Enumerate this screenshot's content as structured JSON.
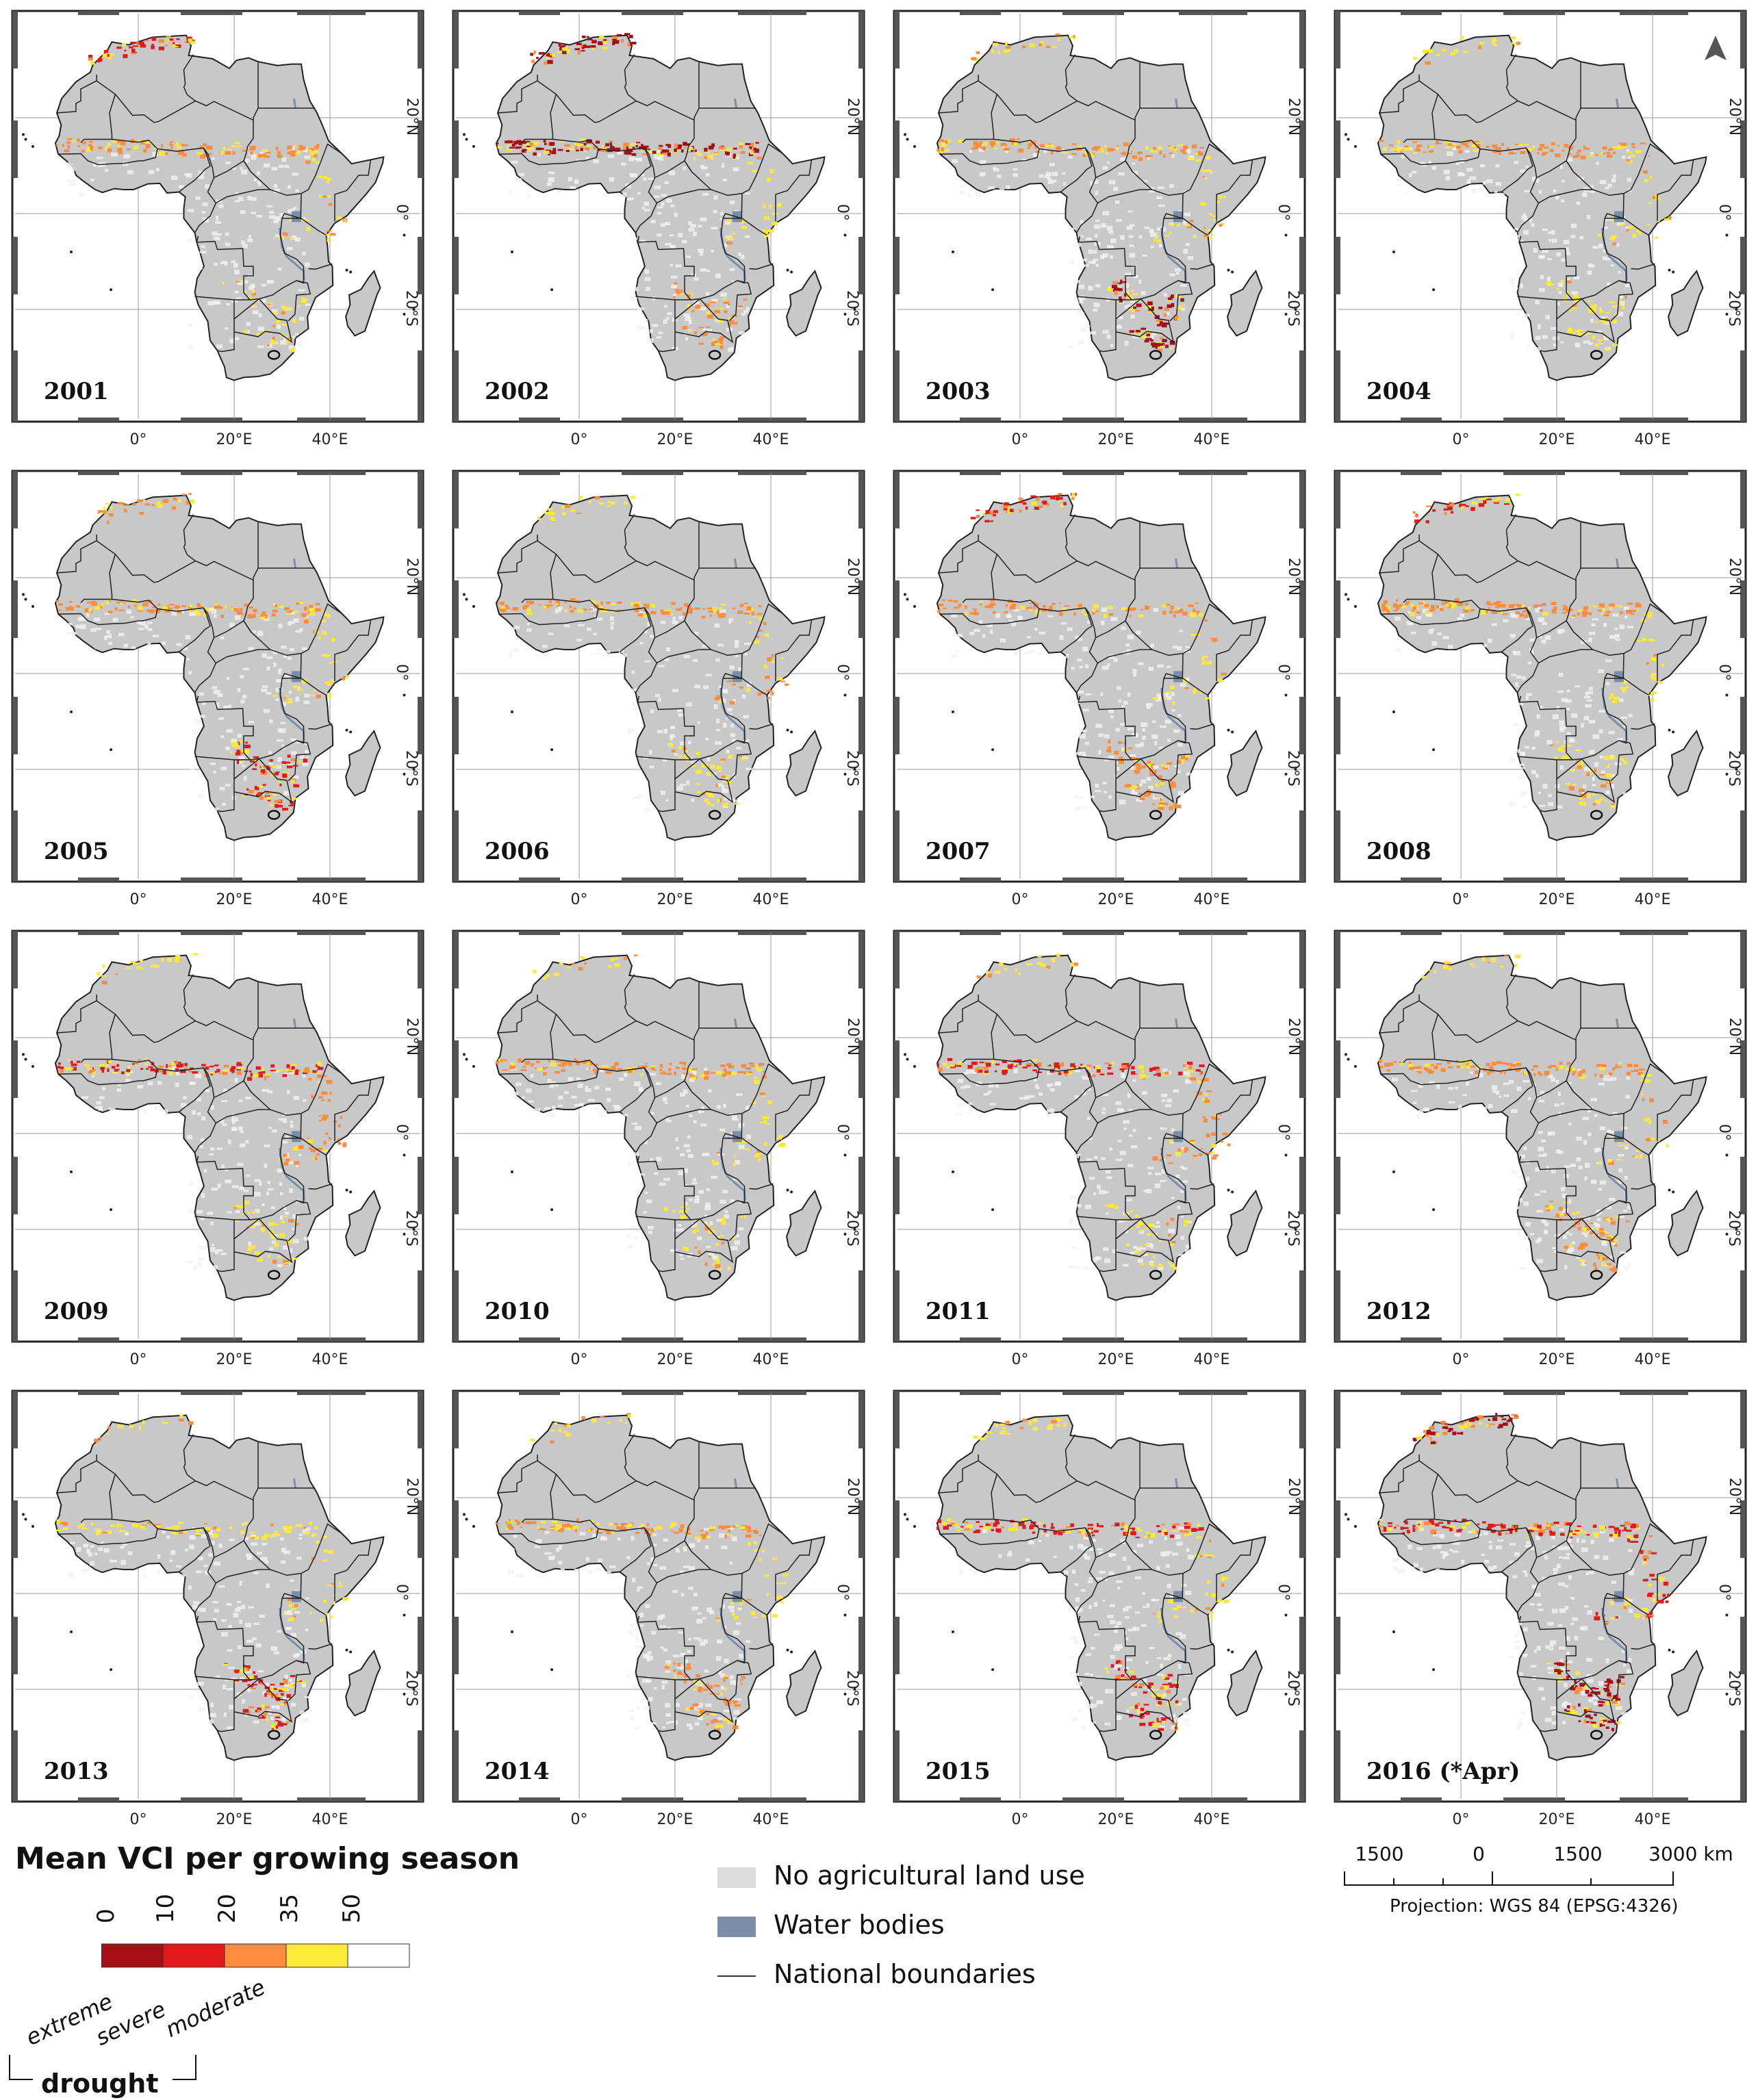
{
  "figure": {
    "panels": [
      {
        "year": "2001"
      },
      {
        "year": "2002"
      },
      {
        "year": "2003"
      },
      {
        "year": "2004"
      },
      {
        "year": "2005"
      },
      {
        "year": "2006"
      },
      {
        "year": "2007"
      },
      {
        "year": "2008"
      },
      {
        "year": "2009"
      },
      {
        "year": "2010"
      },
      {
        "year": "2011"
      },
      {
        "year": "2012"
      },
      {
        "year": "2013"
      },
      {
        "year": "2014"
      },
      {
        "year": "2015"
      },
      {
        "year": "2016 (*Apr)"
      }
    ],
    "lon_labels": [
      "0°",
      "20°E",
      "40°E"
    ],
    "lat_labels": [
      "20°N",
      "0°",
      "20°S"
    ],
    "north_arrow": "north-arrow-icon"
  },
  "legend": {
    "title": "Mean VCI per growing season",
    "ticks": [
      "0",
      "10",
      "20",
      "35",
      "50"
    ],
    "classes": [
      {
        "color": "#a50f15"
      },
      {
        "color": "#e31a1c"
      },
      {
        "color": "#fd8d3c"
      },
      {
        "color": "#fee838"
      },
      {
        "color": "#ffffff"
      }
    ],
    "class_labels": [
      "extreme",
      "severe",
      "moderate"
    ],
    "drought_label": "drought",
    "key": {
      "no_agri": "No agricultural land use",
      "water": "Water bodies",
      "boundaries": "National boundaries"
    },
    "scale_labels": [
      "1500",
      "0",
      "1500",
      "3000 km"
    ],
    "projection": "Projection: WGS 84 (EPSG:4326)"
  },
  "colors": {
    "land": "#c8c8c8",
    "no_agri": "#dcdcdc",
    "water": "#7a8ea8"
  }
}
